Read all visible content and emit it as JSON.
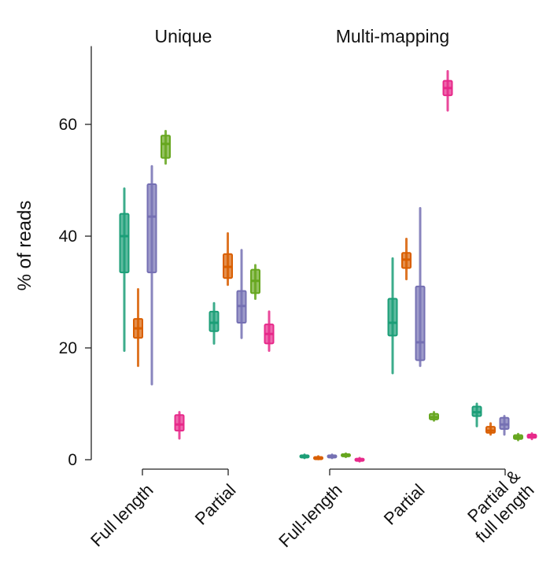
{
  "chart_data": {
    "type": "box",
    "ylabel": "% of reads",
    "ylim": [
      0,
      74
    ],
    "yticks": [
      0,
      20,
      40,
      60
    ],
    "colors": [
      "#1b9e77",
      "#d95f02",
      "#7570b3",
      "#66a61e",
      "#e7298a"
    ],
    "panels": [
      {
        "title": "Unique",
        "groups": [
          {
            "label": "Full length",
            "label_lines": [
              "Full length"
            ],
            "boxes": [
              {
                "low": 19.5,
                "q1": 33.5,
                "median": 40.0,
                "q3": 44.0,
                "high": 48.5
              },
              {
                "low": 16.8,
                "q1": 21.8,
                "median": 23.5,
                "q3": 25.2,
                "high": 30.5
              },
              {
                "low": 13.5,
                "q1": 33.5,
                "median": 43.5,
                "q3": 49.3,
                "high": 52.5
              },
              {
                "low": 53.0,
                "q1": 54.0,
                "median": 56.5,
                "q3": 58.0,
                "high": 58.8
              },
              {
                "low": 3.8,
                "q1": 5.2,
                "median": 6.3,
                "q3": 8.0,
                "high": 8.5
              }
            ]
          },
          {
            "label": "Partial",
            "label_lines": [
              "Partial"
            ],
            "boxes": [
              {
                "low": 20.8,
                "q1": 23.0,
                "median": 24.5,
                "q3": 26.5,
                "high": 28.0
              },
              {
                "low": 31.3,
                "q1": 32.5,
                "median": 34.5,
                "q3": 36.8,
                "high": 40.5
              },
              {
                "low": 21.8,
                "q1": 24.5,
                "median": 27.5,
                "q3": 30.2,
                "high": 37.5
              },
              {
                "low": 28.8,
                "q1": 29.8,
                "median": 32.0,
                "q3": 34.0,
                "high": 34.8
              },
              {
                "low": 19.5,
                "q1": 20.8,
                "median": 22.5,
                "q3": 24.2,
                "high": 26.5
              }
            ]
          }
        ]
      },
      {
        "title": "Multi-mapping",
        "groups": [
          {
            "label": "Full-length",
            "label_lines": [
              "Full-length"
            ],
            "boxes": [
              {
                "low": 0.3,
                "q1": 0.4,
                "median": 0.6,
                "q3": 0.8,
                "high": 0.9
              },
              {
                "low": 0.1,
                "q1": 0.2,
                "median": 0.3,
                "q3": 0.5,
                "high": 0.6
              },
              {
                "low": 0.3,
                "q1": 0.4,
                "median": 0.6,
                "q3": 0.8,
                "high": 0.9
              },
              {
                "low": 0.5,
                "q1": 0.6,
                "median": 0.8,
                "q3": 1.0,
                "high": 1.1
              },
              {
                "low": -0.3,
                "q1": -0.2,
                "median": 0.0,
                "q3": 0.2,
                "high": 0.3
              }
            ]
          },
          {
            "label": "Partial",
            "label_lines": [
              "Partial"
            ],
            "boxes": [
              {
                "low": 15.5,
                "q1": 22.2,
                "median": 24.5,
                "q3": 28.8,
                "high": 36.0
              },
              {
                "low": 32.3,
                "q1": 34.3,
                "median": 35.8,
                "q3": 37.0,
                "high": 39.5
              },
              {
                "low": 16.8,
                "q1": 17.8,
                "median": 21.0,
                "q3": 31.0,
                "high": 45.0
              },
              {
                "low": 7.0,
                "q1": 7.2,
                "median": 7.6,
                "q3": 8.2,
                "high": 8.5
              },
              {
                "low": 62.5,
                "q1": 65.2,
                "median": 66.5,
                "q3": 67.8,
                "high": 69.5
              }
            ]
          },
          {
            "label": "Partial & full length",
            "label_lines": [
              "Partial &",
              "full length"
            ],
            "boxes": [
              {
                "low": 6.0,
                "q1": 7.8,
                "median": 8.5,
                "q3": 9.5,
                "high": 10.0
              },
              {
                "low": 4.5,
                "q1": 4.8,
                "median": 5.2,
                "q3": 5.9,
                "high": 6.5
              },
              {
                "low": 4.5,
                "q1": 5.5,
                "median": 6.3,
                "q3": 7.5,
                "high": 7.8
              },
              {
                "low": 3.5,
                "q1": 3.7,
                "median": 4.0,
                "q3": 4.4,
                "high": 4.6
              },
              {
                "low": 3.7,
                "q1": 3.9,
                "median": 4.2,
                "q3": 4.5,
                "high": 4.7
              }
            ]
          }
        ]
      }
    ]
  }
}
